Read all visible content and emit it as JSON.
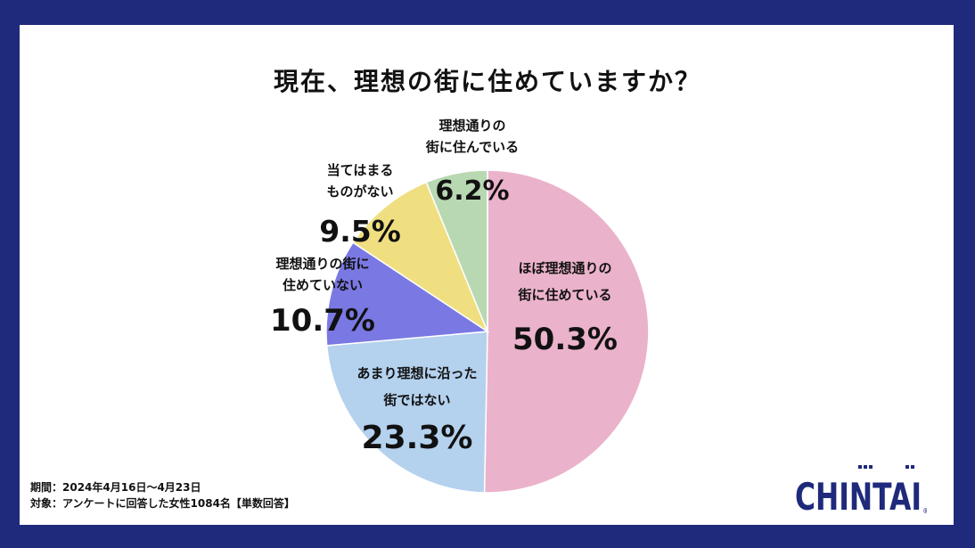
{
  "chart_data": {
    "type": "pie",
    "title": "現在、理想の街に住めていますか？",
    "slices": [
      {
        "label_line1": "ほぼ理想通りの",
        "label_line2": "街に住めている",
        "value": 50.3,
        "value_label": "50.3%",
        "color": "#ebb2cb"
      },
      {
        "label_line1": "あまり理想に沿った",
        "label_line2": "街ではない",
        "value": 23.3,
        "value_label": "23.3%",
        "color": "#b4d1ee"
      },
      {
        "label_line1": "理想通りの街に",
        "label_line2": "住めていない",
        "value": 10.7,
        "value_label": "10.7%",
        "color": "#7a79e3"
      },
      {
        "label_line1": "当てはまる",
        "label_line2": "ものがない",
        "value": 9.5,
        "value_label": "9.5%",
        "color": "#f0df80"
      },
      {
        "label_line1": "理想通りの",
        "label_line2": "街に住んでいる",
        "value": 6.2,
        "value_label": "6.2%",
        "color": "#b8d8b2"
      }
    ]
  },
  "footnote": {
    "period": "期間：2024年4月16日～4月23日",
    "target": "対象：アンケートに回答した女性1084名【単数回答】"
  },
  "logo": {
    "text": "CHINTAI",
    "registered": "®"
  }
}
